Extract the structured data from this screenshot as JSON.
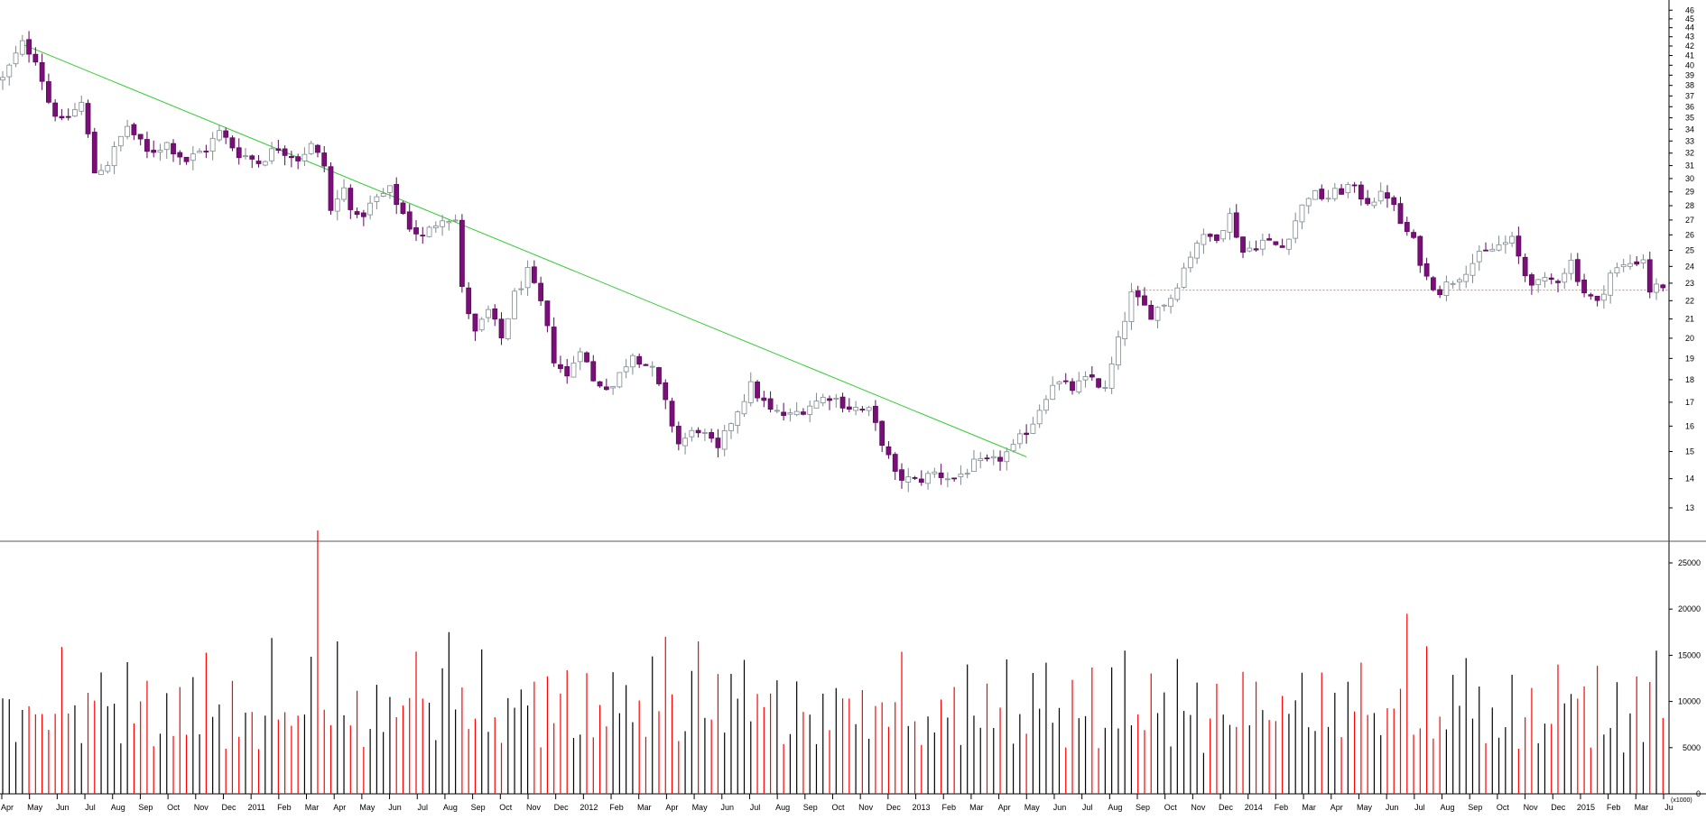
{
  "colors": {
    "up_fill": "#ffffff",
    "up_stroke": "#7f8a8f",
    "down_fill": "#7a0f7a",
    "down_stroke": "#5a0a5a",
    "trendline": "#33cc33",
    "support_line": "#ff8040",
    "volume_up": "#000000",
    "volume_down": "#ff0000",
    "axis": "#000000"
  },
  "chart_data": [
    {
      "type": "candlestick",
      "title": "",
      "ylabel": "",
      "ylim": [
        12,
        46.5
      ],
      "y_scale": "log",
      "y_ticks": [
        13,
        14,
        15,
        16,
        17,
        18,
        19,
        20,
        21,
        22,
        23,
        24,
        25,
        26,
        27,
        28,
        29,
        30,
        31,
        32,
        33,
        34,
        35,
        36,
        37,
        38,
        39,
        40,
        41,
        42,
        43,
        44,
        45,
        46
      ],
      "x_labels": [
        "Apr",
        "May",
        "Jun",
        "Jul",
        "Aug",
        "Sep",
        "Oct",
        "Nov",
        "Dec",
        "2011",
        "Feb",
        "Mar",
        "Apr",
        "May",
        "Jun",
        "Jul",
        "Aug",
        "Sep",
        "Oct",
        "Nov",
        "Dec",
        "2012",
        "Feb",
        "Mar",
        "Apr",
        "May",
        "Jun",
        "Jul",
        "Aug",
        "Sep",
        "Oct",
        "Nov",
        "Dec",
        "2013",
        "Feb",
        "Mar",
        "Apr",
        "May",
        "Jun",
        "Jul",
        "Aug",
        "Sep",
        "Oct",
        "Nov",
        "Dec",
        "2014",
        "Feb",
        "Mar",
        "Apr",
        "May",
        "Jun",
        "Jul",
        "Aug",
        "Sep",
        "Oct",
        "Nov",
        "Dec",
        "2015",
        "Feb",
        "Mar",
        "Ju"
      ],
      "anchors": [
        {
          "w": 0,
          "p": 38.6
        },
        {
          "w": 3,
          "p": 42.2
        },
        {
          "w": 5,
          "p": 40.8
        },
        {
          "w": 7,
          "p": 36.5
        },
        {
          "w": 9,
          "p": 34.5
        },
        {
          "w": 12,
          "p": 36.3
        },
        {
          "w": 14,
          "p": 30.5
        },
        {
          "w": 16,
          "p": 31.2
        },
        {
          "w": 19,
          "p": 34.3
        },
        {
          "w": 22,
          "p": 32.0
        },
        {
          "w": 25,
          "p": 32.8
        },
        {
          "w": 28,
          "p": 31.4
        },
        {
          "w": 31,
          "p": 32.4
        },
        {
          "w": 33,
          "p": 33.7
        },
        {
          "w": 36,
          "p": 32.0
        },
        {
          "w": 39,
          "p": 31.3
        },
        {
          "w": 42,
          "p": 32.5
        },
        {
          "w": 45,
          "p": 31.6
        },
        {
          "w": 47,
          "p": 32.6
        },
        {
          "w": 49,
          "p": 31.0
        },
        {
          "w": 50,
          "p": 27.6
        },
        {
          "w": 52,
          "p": 29.2
        },
        {
          "w": 54,
          "p": 27.0
        },
        {
          "w": 57,
          "p": 28.5
        },
        {
          "w": 59,
          "p": 29.1
        },
        {
          "w": 62,
          "p": 26.6
        },
        {
          "w": 64,
          "p": 25.8
        },
        {
          "w": 67,
          "p": 27.3
        },
        {
          "w": 69,
          "p": 27.0
        },
        {
          "w": 70,
          "p": 22.6
        },
        {
          "w": 72,
          "p": 20.2
        },
        {
          "w": 74,
          "p": 21.4
        },
        {
          "w": 76,
          "p": 20.0
        },
        {
          "w": 78,
          "p": 22.3
        },
        {
          "w": 80,
          "p": 23.6
        },
        {
          "w": 82,
          "p": 21.8
        },
        {
          "w": 84,
          "p": 19.0
        },
        {
          "w": 86,
          "p": 18.1
        },
        {
          "w": 88,
          "p": 19.6
        },
        {
          "w": 90,
          "p": 17.9
        },
        {
          "w": 93,
          "p": 17.7
        },
        {
          "w": 96,
          "p": 19.3
        },
        {
          "w": 99,
          "p": 18.4
        },
        {
          "w": 101,
          "p": 16.9
        },
        {
          "w": 103,
          "p": 15.3
        },
        {
          "w": 106,
          "p": 15.9
        },
        {
          "w": 109,
          "p": 15.0
        },
        {
          "w": 111,
          "p": 16.2
        },
        {
          "w": 114,
          "p": 17.7
        },
        {
          "w": 117,
          "p": 16.6
        },
        {
          "w": 120,
          "p": 16.4
        },
        {
          "w": 123,
          "p": 16.9
        },
        {
          "w": 126,
          "p": 17.3
        },
        {
          "w": 129,
          "p": 16.8
        },
        {
          "w": 132,
          "p": 16.6
        },
        {
          "w": 134,
          "p": 15.4
        },
        {
          "w": 136,
          "p": 14.1
        },
        {
          "w": 139,
          "p": 13.9
        },
        {
          "w": 142,
          "p": 14.2
        },
        {
          "w": 145,
          "p": 14.0
        },
        {
          "w": 148,
          "p": 14.5
        },
        {
          "w": 151,
          "p": 14.6
        },
        {
          "w": 154,
          "p": 15.1
        },
        {
          "w": 157,
          "p": 16.2
        },
        {
          "w": 160,
          "p": 17.9
        },
        {
          "w": 163,
          "p": 17.6
        },
        {
          "w": 166,
          "p": 18.1
        },
        {
          "w": 168,
          "p": 17.5
        },
        {
          "w": 170,
          "p": 19.8
        },
        {
          "w": 172,
          "p": 22.3
        },
        {
          "w": 175,
          "p": 21.3
        },
        {
          "w": 178,
          "p": 22.2
        },
        {
          "w": 180,
          "p": 23.9
        },
        {
          "w": 182,
          "p": 25.6
        },
        {
          "w": 185,
          "p": 26.0
        },
        {
          "w": 187,
          "p": 27.3
        },
        {
          "w": 189,
          "p": 24.9
        },
        {
          "w": 192,
          "p": 25.6
        },
        {
          "w": 195,
          "p": 25.2
        },
        {
          "w": 197,
          "p": 27.0
        },
        {
          "w": 199,
          "p": 28.8
        },
        {
          "w": 202,
          "p": 28.6
        },
        {
          "w": 205,
          "p": 29.4
        },
        {
          "w": 208,
          "p": 28.4
        },
        {
          "w": 211,
          "p": 28.8
        },
        {
          "w": 213,
          "p": 26.8
        },
        {
          "w": 215,
          "p": 25.5
        },
        {
          "w": 217,
          "p": 23.3
        },
        {
          "w": 219,
          "p": 22.6
        },
        {
          "w": 222,
          "p": 23.5
        },
        {
          "w": 225,
          "p": 24.6
        },
        {
          "w": 228,
          "p": 25.3
        },
        {
          "w": 230,
          "p": 25.6
        },
        {
          "w": 232,
          "p": 23.5
        },
        {
          "w": 234,
          "p": 22.9
        },
        {
          "w": 237,
          "p": 23.3
        },
        {
          "w": 239,
          "p": 24.3
        },
        {
          "w": 241,
          "p": 22.5
        },
        {
          "w": 243,
          "p": 21.8
        },
        {
          "w": 245,
          "p": 23.6
        },
        {
          "w": 248,
          "p": 24.2
        },
        {
          "w": 250,
          "p": 24.5
        },
        {
          "w": 251,
          "p": 22.6
        },
        {
          "w": 253,
          "p": 22.9
        }
      ],
      "trendline": {
        "from": {
          "week": 3,
          "price": 42.2
        },
        "to": {
          "week": 156,
          "price": 14.8
        }
      },
      "support_line": {
        "from_week": 172,
        "price": 22.6
      }
    },
    {
      "type": "bar",
      "ylabel": "(x1000)",
      "ylim": [
        0,
        30000
      ],
      "y_ticks": [
        0,
        5000,
        10000,
        15000,
        20000,
        25000
      ],
      "volume_pattern": [
        8.6,
        10.2,
        6.5,
        12.1,
        7.8,
        9.4,
        11.3,
        5.9,
        8.1,
        13.7,
        7.2,
        9.9,
        6.8,
        10.7,
        8.4,
        12.6
      ],
      "volume_spikes": [
        {
          "week": 48,
          "value": 28500
        },
        {
          "week": 51,
          "value": 16500
        },
        {
          "week": 68,
          "value": 17500
        },
        {
          "week": 101,
          "value": 17000
        },
        {
          "week": 106,
          "value": 16500
        },
        {
          "week": 113,
          "value": 14500
        },
        {
          "week": 171,
          "value": 15500
        },
        {
          "week": 147,
          "value": 14000
        },
        {
          "week": 214,
          "value": 19500
        },
        {
          "week": 237,
          "value": 14000
        },
        {
          "week": 252,
          "value": 15500
        }
      ]
    }
  ]
}
